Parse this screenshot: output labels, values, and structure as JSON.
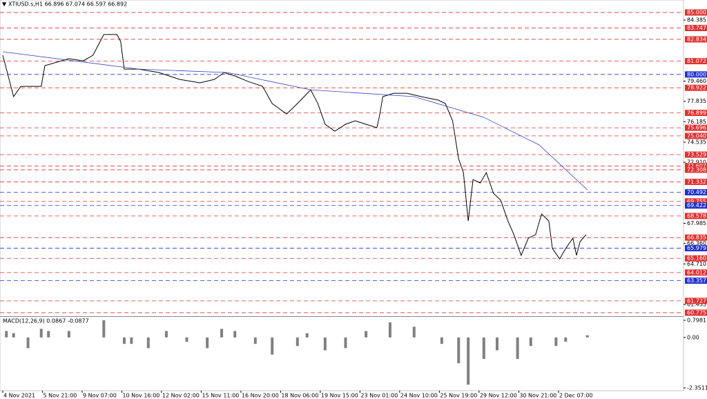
{
  "chart_data": [
    {
      "type": "line",
      "title": "XTIUSD.s,H1 66.896 67.074 66.597 66.892",
      "xlim": [
        0,
        566
      ],
      "xticks": [
        {
          "value": 0,
          "label": "4 Nov 2021"
        },
        {
          "value": 33,
          "label": "5 Nov 21:00"
        },
        {
          "value": 66,
          "label": "9 Nov 07:00"
        },
        {
          "value": 99,
          "label": "10 Nov 16:00"
        },
        {
          "value": 132,
          "label": "12 Nov 02:00"
        },
        {
          "value": 165,
          "label": "15 Nov 11:00"
        },
        {
          "value": 198,
          "label": "16 Nov 20:00"
        },
        {
          "value": 231,
          "label": "18 Nov 06:00"
        },
        {
          "value": 264,
          "label": "19 Nov 15:00"
        },
        {
          "value": 297,
          "label": "23 Nov 01:00"
        },
        {
          "value": 330,
          "label": "24 Nov 10:00"
        },
        {
          "value": 363,
          "label": "25 Nov 19:00"
        },
        {
          "value": 396,
          "label": "29 Nov 12:00"
        },
        {
          "value": 429,
          "label": "30 Nov 21:00"
        },
        {
          "value": 462,
          "label": "2 Dec 07:00"
        }
      ],
      "ylim": [
        60.55,
        85.45
      ],
      "yticks": [
        {
          "value": 84.385,
          "label": "84.385"
        },
        {
          "value": 79.46,
          "label": "79.460"
        },
        {
          "value": 77.835,
          "label": "77.835"
        },
        {
          "value": 76.185,
          "label": "76.185"
        },
        {
          "value": 74.535,
          "label": "74.535"
        },
        {
          "value": 72.91,
          "label": "72.910"
        },
        {
          "value": 67.985,
          "label": "67.985"
        },
        {
          "value": 66.36,
          "label": "66.360"
        },
        {
          "value": 64.71,
          "label": "64.710"
        },
        {
          "value": 61.435,
          "label": "61.435"
        }
      ],
      "levels": [
        {
          "value": 85,
          "label": "85.000",
          "color": "#e03030"
        },
        {
          "value": 83.747,
          "label": "83.747",
          "color": "#e03030"
        },
        {
          "value": 82.834,
          "label": "82.834",
          "color": "#e03030"
        },
        {
          "value": 81.072,
          "label": "81.072",
          "color": "#e03030"
        },
        {
          "value": 80,
          "label": "80.000",
          "color": "#2030d0"
        },
        {
          "value": 78.922,
          "label": "78.922",
          "color": "#e03030"
        },
        {
          "value": 76.899,
          "label": "76.899",
          "color": "#e03030"
        },
        {
          "value": 75.696,
          "label": "75.696",
          "color": "#e03030"
        },
        {
          "value": 75.04,
          "label": "75.040",
          "color": "#e03030"
        },
        {
          "value": 73.529,
          "label": "73.529",
          "color": "#e03030"
        },
        {
          "value": 72.607,
          "label": "72.607",
          "color": "#e03030"
        },
        {
          "value": 72.308,
          "label": "72.308",
          "color": "#e03030"
        },
        {
          "value": 71.332,
          "label": "71.332",
          "color": "#e03030"
        },
        {
          "value": 70.492,
          "label": "70.492",
          "color": "#2030d0"
        },
        {
          "value": 69.755,
          "label": "69.755",
          "color": "#e03030"
        },
        {
          "value": 69.422,
          "label": "69.422",
          "color": "#2030d0"
        },
        {
          "value": 68.578,
          "label": "68.578",
          "color": "#e03030"
        },
        {
          "value": 66.835,
          "label": "66.835",
          "color": "#e03030"
        },
        {
          "value": 65.979,
          "label": "65.979",
          "color": "#2030d0"
        },
        {
          "value": 65.16,
          "label": "65.160",
          "color": "#e03030"
        },
        {
          "value": 64.012,
          "label": "64.012",
          "color": "#e03030"
        },
        {
          "value": 63.357,
          "label": "63.357",
          "color": "#2030d0"
        },
        {
          "value": 61.727,
          "label": "61.727",
          "color": "#e03030"
        },
        {
          "value": 60.775,
          "label": "60.775",
          "color": "#e03030"
        }
      ],
      "series": [
        {
          "color": "#000000",
          "x": [
            0,
            9,
            15,
            32,
            35,
            55,
            67,
            75,
            84,
            95,
            98,
            101,
            113,
            130,
            147,
            164,
            176,
            184,
            193,
            204,
            216,
            224,
            236,
            245,
            256,
            262,
            268,
            276,
            285,
            293,
            302,
            311,
            313,
            316,
            325,
            336,
            348,
            362,
            368,
            374,
            379,
            383,
            387,
            391,
            397,
            402,
            408,
            414,
            420,
            425,
            431,
            437,
            443,
            448,
            454,
            457,
            463,
            468,
            474,
            477,
            480,
            485
          ],
          "values": [
            81.55,
            78.21,
            79.04,
            79.04,
            80.71,
            81.27,
            81.1,
            81.55,
            83.22,
            83.22,
            82.66,
            80.43,
            80.43,
            80.15,
            79.6,
            79.32,
            79.6,
            80.15,
            79.88,
            79.43,
            79.04,
            77.65,
            76.81,
            77.65,
            78.76,
            77.65,
            75.98,
            75.42,
            75.98,
            76.26,
            75.98,
            75.7,
            76.54,
            78.21,
            78.48,
            78.48,
            78.21,
            77.93,
            77.65,
            76.26,
            73.19,
            72.08,
            68.18,
            71.52,
            71.24,
            72.08,
            70.41,
            69.85,
            68.18,
            67.07,
            65.4,
            66.79,
            67.07,
            68.74,
            68.18,
            65.95,
            65.12,
            65.95,
            66.79,
            65.4,
            66.51,
            67.07
          ]
        },
        {
          "color": "#3040c0",
          "x": [
            0,
            113,
            187,
            256,
            342,
            400,
            446,
            486
          ],
          "values": [
            81.83,
            80.43,
            80.15,
            78.76,
            78.21,
            76.54,
            74.31,
            70.69
          ]
        }
      ]
    },
    {
      "type": "bar",
      "title": "MACD(12,26,9) 0.0867 -0.0877",
      "color": "#808080",
      "ylim": [
        -2.4475,
        0.894
      ],
      "yticks": [
        0.7981,
        {
          "value": 0,
          "label": "0.00"
        },
        -2.3511
      ],
      "x": [
        3,
        9,
        21,
        32,
        38,
        55,
        84,
        101,
        107,
        121,
        136,
        153,
        170,
        182,
        193,
        210,
        224,
        245,
        253,
        268,
        285,
        302,
        322,
        342,
        365,
        379,
        387,
        400,
        411,
        428,
        439,
        451,
        460,
        468,
        486
      ],
      "values": [
        0.3,
        0.2,
        -0.5,
        0.4,
        0.3,
        0.3,
        0.8,
        -0.3,
        -0.3,
        -0.5,
        0.3,
        -0.2,
        -0.5,
        0.4,
        0.3,
        -0.3,
        -0.8,
        -0.4,
        0.2,
        -0.6,
        -0.5,
        0.3,
        0.7,
        0.5,
        -0.3,
        -1.2,
        -2.2,
        -1.0,
        -0.6,
        -1.0,
        -0.4,
        0.0,
        -0.4,
        -0.2,
        0.1
      ]
    }
  ]
}
